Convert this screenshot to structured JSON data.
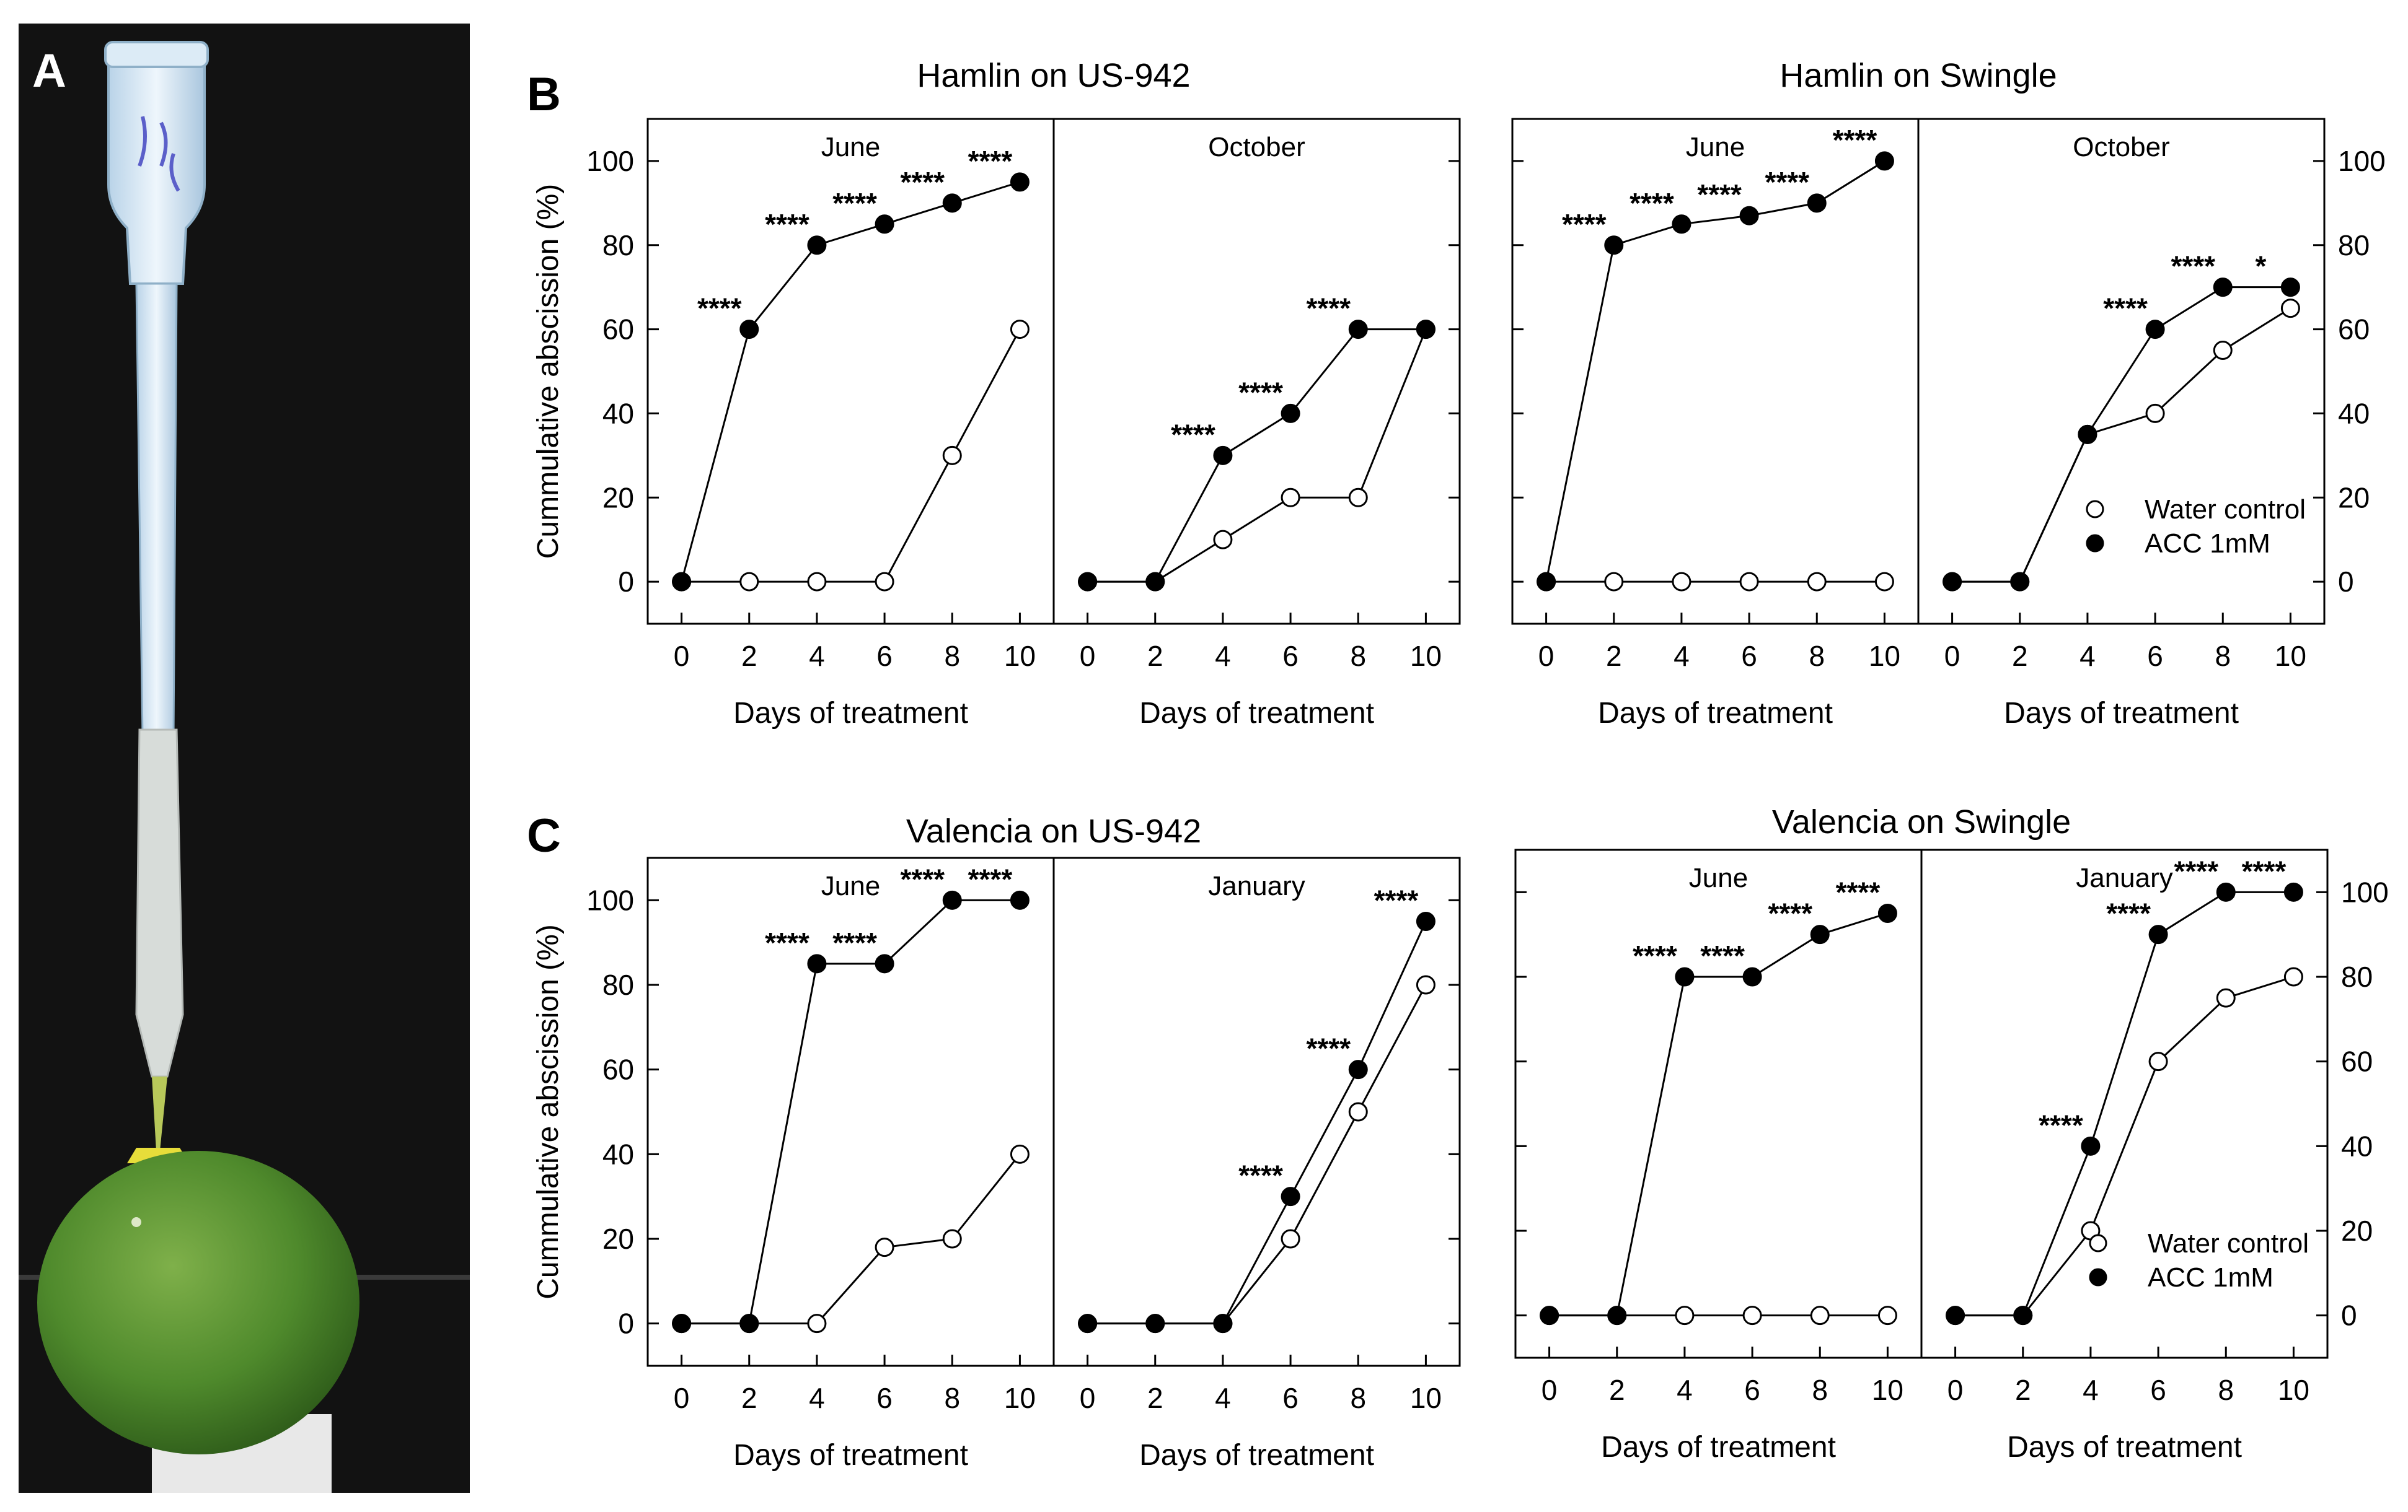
{
  "photo": {
    "panel_label": "A",
    "description_icon": "pipette-on-fruit-photo"
  },
  "shared": {
    "xlabel": "Days of treatment",
    "ylabel": "Cummulative abscission (%)",
    "xticks": [
      "0",
      "2",
      "4",
      "6",
      "8",
      "10"
    ],
    "yticks": [
      "0",
      "20",
      "40",
      "60",
      "80",
      "100"
    ],
    "legend_water": "Water control",
    "legend_acc": "ACC 1mM"
  },
  "chart_data": [
    {
      "group": "B",
      "title": "Hamlin on US-942",
      "subplot": "June",
      "type": "line",
      "x": [
        0,
        2,
        4,
        6,
        8,
        10
      ],
      "xlim": [
        -1,
        11
      ],
      "ylim": [
        -10,
        110
      ],
      "series": [
        {
          "name": "Water control",
          "values": [
            0,
            0,
            0,
            0,
            30,
            60
          ]
        },
        {
          "name": "ACC 1mM",
          "values": [
            0,
            60,
            80,
            85,
            90,
            95
          ]
        }
      ],
      "annotations": [
        {
          "x": 2,
          "y": 60,
          "text": "****"
        },
        {
          "x": 4,
          "y": 80,
          "text": "****"
        },
        {
          "x": 6,
          "y": 85,
          "text": "****"
        },
        {
          "x": 8,
          "y": 90,
          "text": "****"
        },
        {
          "x": 10,
          "y": 95,
          "text": "****"
        }
      ]
    },
    {
      "group": "B",
      "title": "Hamlin on US-942",
      "subplot": "October",
      "type": "line",
      "x": [
        0,
        2,
        4,
        6,
        8,
        10
      ],
      "xlim": [
        -1,
        11
      ],
      "ylim": [
        -10,
        110
      ],
      "series": [
        {
          "name": "Water control",
          "values": [
            0,
            0,
            10,
            20,
            20,
            60
          ]
        },
        {
          "name": "ACC 1mM",
          "values": [
            0,
            0,
            30,
            40,
            60,
            60
          ]
        }
      ],
      "annotations": [
        {
          "x": 4,
          "y": 30,
          "text": "****"
        },
        {
          "x": 6,
          "y": 40,
          "text": "****"
        },
        {
          "x": 8,
          "y": 60,
          "text": "****"
        }
      ]
    },
    {
      "group": "B",
      "title": "Hamlin on Swingle",
      "subplot": "June",
      "type": "line",
      "x": [
        0,
        2,
        4,
        6,
        8,
        10
      ],
      "xlim": [
        -1,
        11
      ],
      "ylim": [
        -10,
        110
      ],
      "series": [
        {
          "name": "Water control",
          "values": [
            0,
            0,
            0,
            0,
            0,
            0
          ]
        },
        {
          "name": "ACC 1mM",
          "values": [
            0,
            80,
            85,
            87,
            90,
            100
          ]
        }
      ],
      "annotations": [
        {
          "x": 2,
          "y": 80,
          "text": "****"
        },
        {
          "x": 4,
          "y": 85,
          "text": "****"
        },
        {
          "x": 6,
          "y": 87,
          "text": "****"
        },
        {
          "x": 8,
          "y": 90,
          "text": "****"
        },
        {
          "x": 10,
          "y": 100,
          "text": "****"
        }
      ]
    },
    {
      "group": "B",
      "title": "Hamlin on Swingle",
      "subplot": "October",
      "type": "line",
      "x": [
        0,
        2,
        4,
        6,
        8,
        10
      ],
      "xlim": [
        -1,
        11
      ],
      "ylim": [
        -10,
        110
      ],
      "series": [
        {
          "name": "Water control",
          "values": [
            0,
            0,
            35,
            40,
            55,
            65
          ]
        },
        {
          "name": "ACC 1mM",
          "values": [
            0,
            0,
            35,
            60,
            70,
            70
          ]
        }
      ],
      "annotations": [
        {
          "x": 6,
          "y": 60,
          "text": "****"
        },
        {
          "x": 8,
          "y": 70,
          "text": "****"
        },
        {
          "x": 10,
          "y": 70,
          "text": "*"
        }
      ]
    },
    {
      "group": "C",
      "title": "Valencia on US-942",
      "subplot": "June",
      "type": "line",
      "x": [
        0,
        2,
        4,
        6,
        8,
        10
      ],
      "xlim": [
        -1,
        11
      ],
      "ylim": [
        -10,
        110
      ],
      "series": [
        {
          "name": "Water control",
          "values": [
            0,
            0,
            0,
            18,
            20,
            40
          ]
        },
        {
          "name": "ACC 1mM",
          "values": [
            0,
            0,
            85,
            85,
            100,
            100
          ]
        }
      ],
      "annotations": [
        {
          "x": 4,
          "y": 85,
          "text": "****"
        },
        {
          "x": 6,
          "y": 85,
          "text": "****"
        },
        {
          "x": 8,
          "y": 100,
          "text": "****"
        },
        {
          "x": 10,
          "y": 100,
          "text": "****"
        }
      ]
    },
    {
      "group": "C",
      "title": "Valencia on US-942",
      "subplot": "January",
      "type": "line",
      "x": [
        0,
        2,
        4,
        6,
        8,
        10
      ],
      "xlim": [
        -1,
        11
      ],
      "ylim": [
        -10,
        110
      ],
      "series": [
        {
          "name": "Water control",
          "values": [
            0,
            0,
            0,
            20,
            50,
            80
          ]
        },
        {
          "name": "ACC 1mM",
          "values": [
            0,
            0,
            0,
            30,
            60,
            95
          ]
        }
      ],
      "annotations": [
        {
          "x": 6,
          "y": 30,
          "text": "****"
        },
        {
          "x": 8,
          "y": 60,
          "text": "****"
        },
        {
          "x": 10,
          "y": 95,
          "text": "****"
        }
      ]
    },
    {
      "group": "C",
      "title": "Valencia on Swingle",
      "subplot": "June",
      "type": "line",
      "x": [
        0,
        2,
        4,
        6,
        8,
        10
      ],
      "xlim": [
        -1,
        11
      ],
      "ylim": [
        -10,
        110
      ],
      "series": [
        {
          "name": "Water control",
          "values": [
            0,
            0,
            0,
            0,
            0,
            0
          ]
        },
        {
          "name": "ACC 1mM",
          "values": [
            0,
            0,
            80,
            80,
            90,
            95
          ]
        }
      ],
      "annotations": [
        {
          "x": 4,
          "y": 80,
          "text": "****"
        },
        {
          "x": 6,
          "y": 80,
          "text": "****"
        },
        {
          "x": 8,
          "y": 90,
          "text": "****"
        },
        {
          "x": 10,
          "y": 95,
          "text": "****"
        }
      ]
    },
    {
      "group": "C",
      "title": "Valencia on Swingle",
      "subplot": "January",
      "type": "line",
      "x": [
        0,
        2,
        4,
        6,
        8,
        10
      ],
      "xlim": [
        -1,
        11
      ],
      "ylim": [
        -10,
        110
      ],
      "series": [
        {
          "name": "Water control",
          "values": [
            0,
            0,
            20,
            60,
            75,
            80
          ]
        },
        {
          "name": "ACC 1mM",
          "values": [
            0,
            0,
            40,
            90,
            100,
            100
          ]
        }
      ],
      "annotations": [
        {
          "x": 4,
          "y": 40,
          "text": "****"
        },
        {
          "x": 6,
          "y": 90,
          "text": "****"
        },
        {
          "x": 8,
          "y": 100,
          "text": "****"
        },
        {
          "x": 10,
          "y": 100,
          "text": "****"
        }
      ]
    }
  ]
}
